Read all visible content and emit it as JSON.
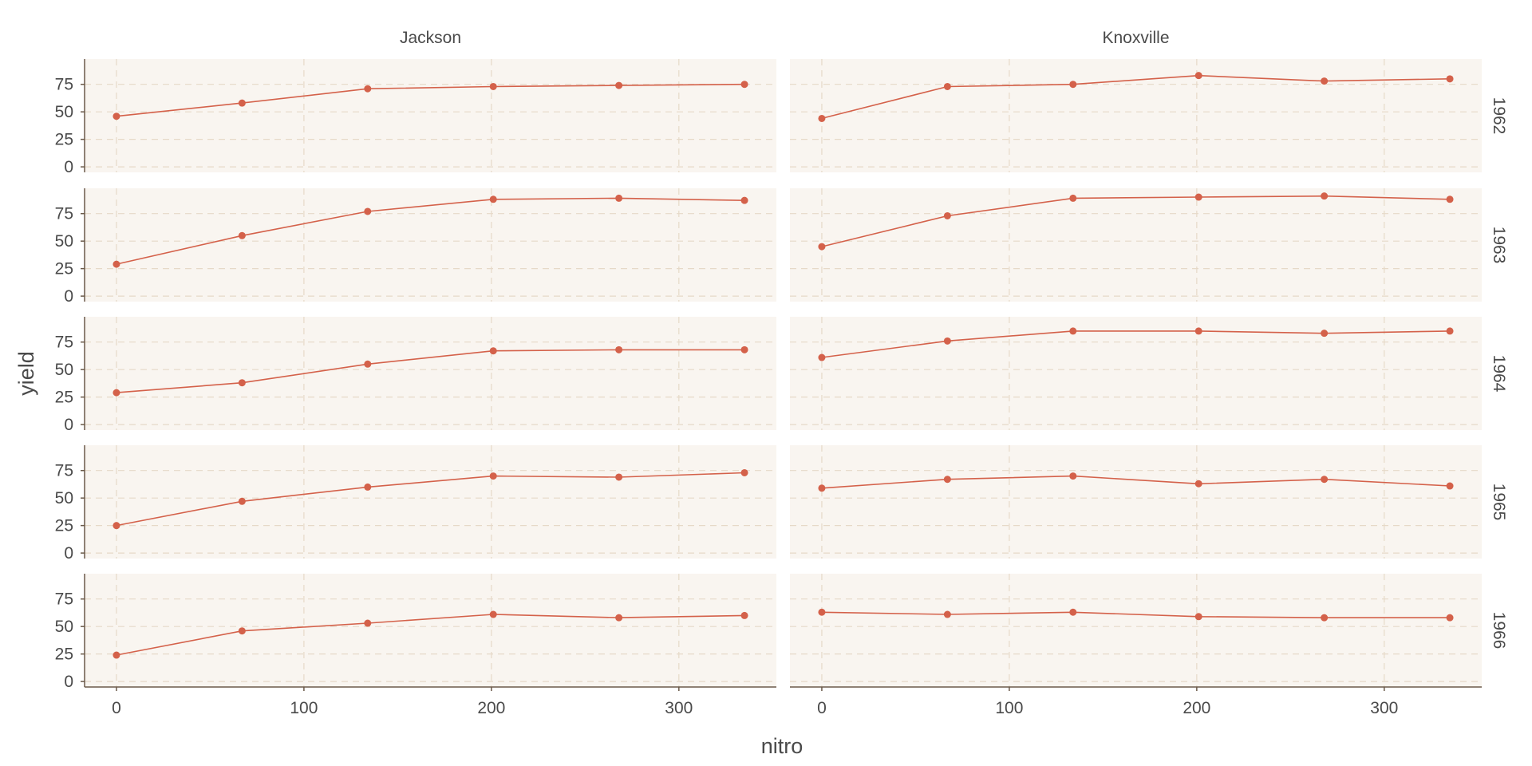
{
  "chart_data": {
    "type": "line",
    "xlabel": "nitro",
    "ylabel": "yield",
    "columns": [
      "Jackson",
      "Knoxville"
    ],
    "rows": [
      "1962",
      "1963",
      "1964",
      "1965",
      "1966"
    ],
    "x": [
      0,
      67,
      134,
      201,
      268,
      335
    ],
    "xlim": [
      -17,
      352
    ],
    "ylim": [
      -5,
      98
    ],
    "xticks": [
      0,
      100,
      200,
      300
    ],
    "yticks": [
      0,
      25,
      50,
      75
    ],
    "grid": true,
    "panels": [
      {
        "site": "Jackson",
        "year": "1962",
        "y": [
          46,
          58,
          71,
          73,
          74,
          75
        ]
      },
      {
        "site": "Knoxville",
        "year": "1962",
        "y": [
          44,
          73,
          75,
          83,
          78,
          80
        ]
      },
      {
        "site": "Jackson",
        "year": "1963",
        "y": [
          29,
          55,
          77,
          88,
          89,
          87
        ]
      },
      {
        "site": "Knoxville",
        "year": "1963",
        "y": [
          45,
          73,
          89,
          90,
          91,
          88
        ]
      },
      {
        "site": "Jackson",
        "year": "1964",
        "y": [
          29,
          38,
          55,
          67,
          68,
          68
        ]
      },
      {
        "site": "Knoxville",
        "year": "1964",
        "y": [
          61,
          76,
          85,
          85,
          83,
          85
        ]
      },
      {
        "site": "Jackson",
        "year": "1965",
        "y": [
          25,
          47,
          60,
          70,
          69,
          73
        ]
      },
      {
        "site": "Knoxville",
        "year": "1965",
        "y": [
          59,
          67,
          70,
          63,
          67,
          61
        ]
      },
      {
        "site": "Jackson",
        "year": "1966",
        "y": [
          24,
          46,
          53,
          61,
          58,
          60
        ]
      },
      {
        "site": "Knoxville",
        "year": "1966",
        "y": [
          63,
          61,
          63,
          59,
          58,
          58
        ]
      }
    ],
    "colors": {
      "series": "#d4614a",
      "panel_background": "#f9f5f0",
      "grid": "#e6d9c8",
      "axis": "#6b5a4a",
      "text": "#4a4a4a"
    }
  }
}
